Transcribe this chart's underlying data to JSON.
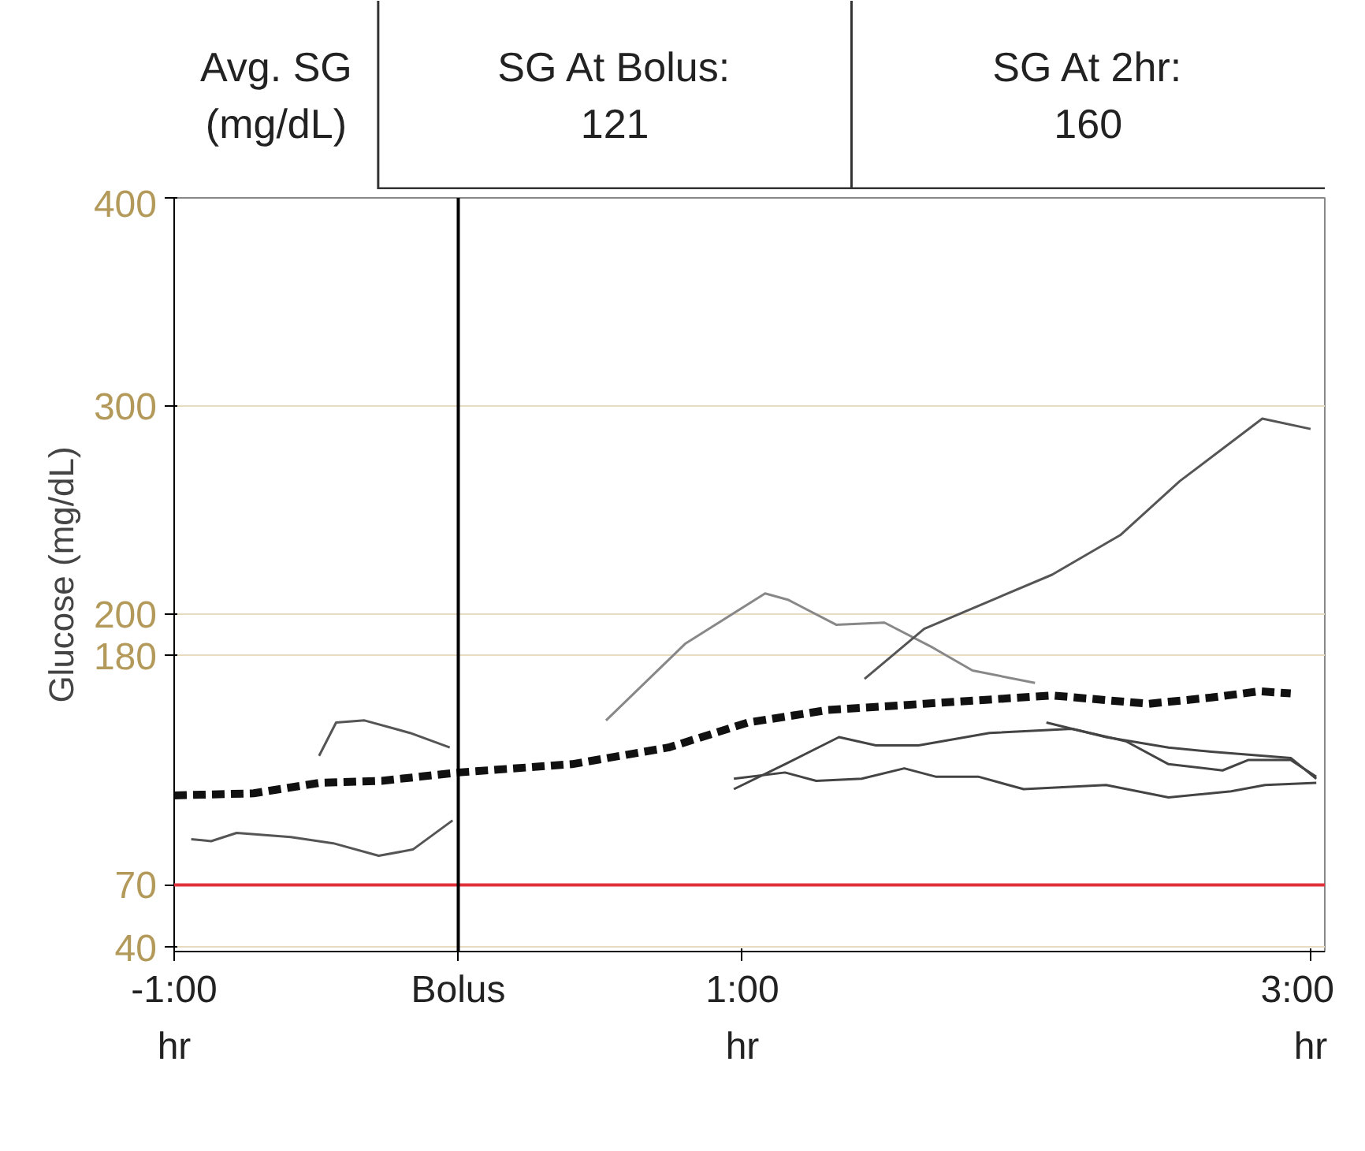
{
  "chart_data": {
    "type": "line",
    "ylabel": "Glucose (mg/dL)",
    "annotations": [
      "Avg. SG\n(mg/dL)",
      "SG At Bolus:\n121",
      "SG At 2hr:\n160",
      "hr",
      "hr",
      "hr"
    ],
    "xlim": [
      -1,
      3.05
    ],
    "xticks": [
      {
        "value": -1,
        "label": "-1:00"
      },
      {
        "value": 0,
        "label": "Bolus"
      },
      {
        "value": 1,
        "label": "1:00"
      },
      {
        "value": 3,
        "label": "3:00"
      }
    ],
    "ylim": [
      38,
      400
    ],
    "yticks": [
      40,
      70,
      180,
      200,
      300,
      400
    ],
    "grid": "y",
    "ref_lines": [
      {
        "axis": "y",
        "value": 70,
        "label": null,
        "color": "#e0303a"
      },
      {
        "axis": "x",
        "value": 0,
        "label": null,
        "color": "#000000"
      }
    ],
    "series": [
      {
        "color": "#555555",
        "x": [
          -0.94,
          -0.87,
          -0.78,
          -0.59,
          -0.44,
          -0.28,
          -0.16,
          -0.02
        ],
        "values": [
          92,
          91,
          95,
          93,
          90,
          84,
          87,
          101
        ]
      },
      {
        "color": "#555555",
        "x": [
          -0.49,
          -0.43,
          -0.33,
          -0.17,
          -0.03
        ],
        "values": [
          132,
          148,
          149,
          143,
          136
        ]
      },
      {
        "color": "#888888",
        "x": [
          0.52,
          0.8,
          1.08,
          1.16,
          1.33,
          1.5,
          1.67,
          1.81,
          2.03
        ],
        "values": [
          149,
          186,
          210,
          207,
          195,
          196,
          184,
          173,
          167
        ]
      },
      {
        "color": "#555555",
        "x": [
          1.43,
          1.64,
          2.09,
          2.33,
          2.54,
          2.83,
          3.0
        ],
        "values": [
          169,
          193,
          219,
          238,
          264,
          294,
          289
        ]
      },
      {
        "color": "#444444",
        "x": [
          0.97,
          1.15,
          1.26,
          1.42,
          1.57,
          1.68,
          1.83,
          1.99,
          2.28,
          2.5,
          2.72,
          2.84,
          3.02
        ],
        "values": [
          121,
          124,
          120,
          121,
          126,
          122,
          122,
          116,
          118,
          112,
          115,
          118,
          119
        ]
      },
      {
        "color": "#444444",
        "x": [
          0.97,
          1.15,
          1.34,
          1.47,
          1.62,
          1.87,
          2.16,
          2.35,
          2.5,
          2.69,
          2.78,
          2.93,
          3.02
        ],
        "values": [
          116,
          128,
          141,
          137,
          137,
          143,
          145,
          139,
          128,
          125,
          130,
          130,
          122
        ]
      },
      {
        "color": "#444444",
        "x": [
          2.07,
          2.28,
          2.5,
          2.65,
          2.93,
          3.02
        ],
        "values": [
          148,
          141,
          136,
          134,
          131,
          121
        ]
      },
      {
        "color": "#111111",
        "line_style": "dashed",
        "x": [
          -1,
          -0.72,
          -0.49,
          -0.27,
          0,
          0.4,
          0.74,
          1.02,
          1.3,
          1.64,
          2.09,
          2.43,
          2.65,
          2.82,
          2.93
        ],
        "values": [
          113,
          114,
          119,
          120,
          124,
          128,
          136,
          148,
          154,
          157,
          161,
          157,
          160,
          163,
          162
        ]
      }
    ]
  }
}
